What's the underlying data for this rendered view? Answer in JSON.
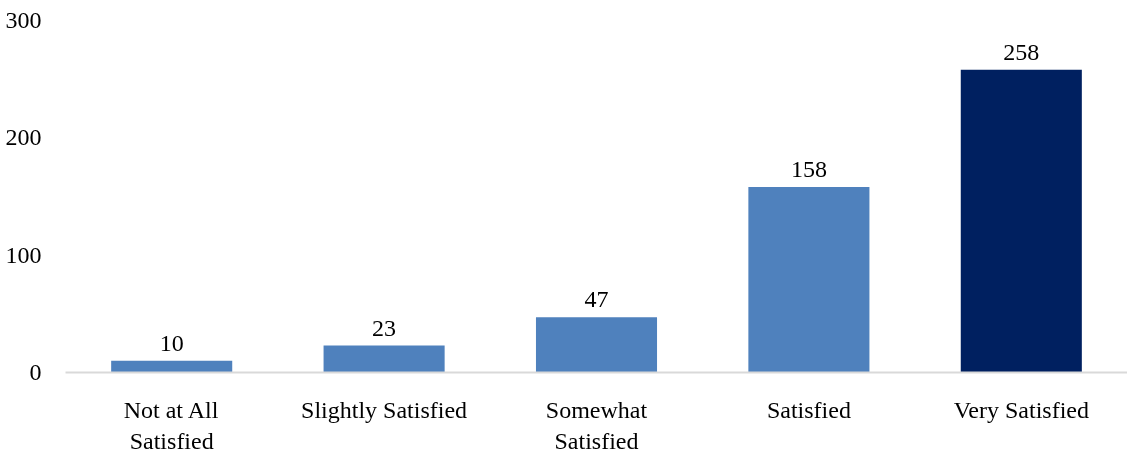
{
  "chart_data": {
    "type": "bar",
    "categories": [
      "Not at All Satisfied",
      "Slightly Satisfied",
      "Somewhat Satisfied",
      "Satisfied",
      "Very Satisfied"
    ],
    "values": [
      10,
      23,
      47,
      158,
      258
    ],
    "colors": [
      "#4f81bd",
      "#4f81bd",
      "#4f81bd",
      "#4f81bd",
      "#002060"
    ],
    "ylim": [
      0,
      300
    ],
    "yticks": [
      0,
      100,
      200,
      300
    ],
    "data_labels": true,
    "grid": false
  }
}
